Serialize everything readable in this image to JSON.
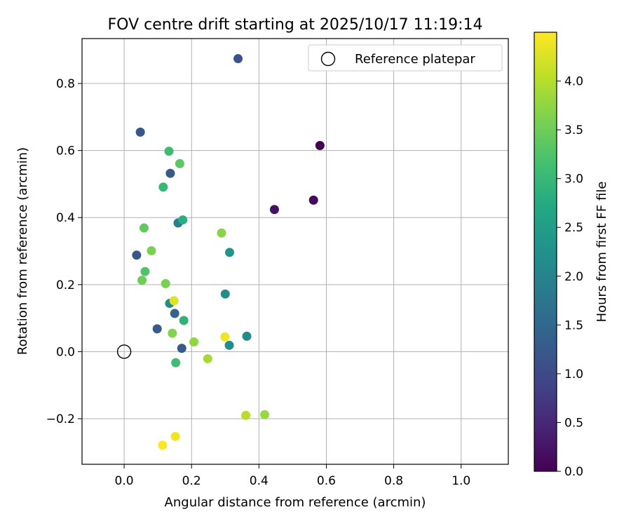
{
  "chart_data": {
    "type": "scatter",
    "title": "FOV centre drift starting at 2025/10/17 11:19:14",
    "xlabel": "Angular distance from reference (arcmin)",
    "ylabel": "Rotation from reference (arcmin)",
    "xlim": [
      -0.125,
      1.14
    ],
    "ylim": [
      -0.336,
      0.934
    ],
    "xticks": [
      0.0,
      0.2,
      0.4,
      0.6,
      0.8,
      1.0
    ],
    "xtick_labels": [
      "0.0",
      "0.2",
      "0.4",
      "0.6",
      "0.8",
      "1.0"
    ],
    "yticks": [
      -0.2,
      0.0,
      0.2,
      0.4,
      0.6,
      0.8
    ],
    "ytick_labels": [
      "−0.2",
      "0.0",
      "0.2",
      "0.4",
      "0.6",
      "0.8"
    ],
    "grid": true,
    "legend": {
      "position": "top-right",
      "entries": [
        "Reference platepar"
      ]
    },
    "reference_point": {
      "x": 0.0,
      "y": 0.0,
      "label": "Reference platepar"
    },
    "colorbar": {
      "label": "Hours from first FF file",
      "colormap": "viridis",
      "range": [
        0.0,
        4.5
      ],
      "ticks": [
        0.0,
        0.5,
        1.0,
        1.5,
        2.0,
        2.5,
        3.0,
        3.5,
        4.0
      ],
      "tick_labels": [
        "0.0",
        "0.5",
        "1.0",
        "1.5",
        "2.0",
        "2.5",
        "3.0",
        "3.5",
        "4.0"
      ]
    },
    "series": [
      {
        "name": "FOV centre drift",
        "points": [
          {
            "x": 0.581,
            "y": 0.615,
            "hours": 0.0
          },
          {
            "x": 0.562,
            "y": 0.452,
            "hours": 0.1
          },
          {
            "x": 0.446,
            "y": 0.424,
            "hours": 0.2
          },
          {
            "x": 0.338,
            "y": 0.874,
            "hours": 1.15
          },
          {
            "x": 0.048,
            "y": 0.655,
            "hours": 1.2
          },
          {
            "x": 0.137,
            "y": 0.532,
            "hours": 1.25
          },
          {
            "x": 0.037,
            "y": 0.288,
            "hours": 1.2
          },
          {
            "x": 0.098,
            "y": 0.068,
            "hours": 1.25
          },
          {
            "x": 0.171,
            "y": 0.01,
            "hours": 1.3
          },
          {
            "x": 0.15,
            "y": 0.114,
            "hours": 1.4
          },
          {
            "x": 0.16,
            "y": 0.384,
            "hours": 1.9
          },
          {
            "x": 0.135,
            "y": 0.144,
            "hours": 2.1
          },
          {
            "x": 0.312,
            "y": 0.019,
            "hours": 2.2
          },
          {
            "x": 0.364,
            "y": 0.046,
            "hours": 2.15
          },
          {
            "x": 0.3,
            "y": 0.172,
            "hours": 2.15
          },
          {
            "x": 0.313,
            "y": 0.296,
            "hours": 2.3
          },
          {
            "x": 0.174,
            "y": 0.393,
            "hours": 2.8
          },
          {
            "x": 0.177,
            "y": 0.093,
            "hours": 2.9
          },
          {
            "x": 0.116,
            "y": 0.491,
            "hours": 3.0
          },
          {
            "x": 0.133,
            "y": 0.598,
            "hours": 3.1
          },
          {
            "x": 0.153,
            "y": -0.033,
            "hours": 3.1
          },
          {
            "x": 0.062,
            "y": 0.239,
            "hours": 3.25
          },
          {
            "x": 0.165,
            "y": 0.561,
            "hours": 3.35
          },
          {
            "x": 0.059,
            "y": 0.369,
            "hours": 3.4
          },
          {
            "x": 0.053,
            "y": 0.213,
            "hours": 3.5
          },
          {
            "x": 0.081,
            "y": 0.301,
            "hours": 3.6
          },
          {
            "x": 0.123,
            "y": 0.203,
            "hours": 3.6
          },
          {
            "x": 0.143,
            "y": 0.055,
            "hours": 3.65
          },
          {
            "x": 0.289,
            "y": 0.354,
            "hours": 3.7
          },
          {
            "x": 0.207,
            "y": 0.029,
            "hours": 3.75
          },
          {
            "x": 0.248,
            "y": -0.021,
            "hours": 3.9
          },
          {
            "x": 0.417,
            "y": -0.188,
            "hours": 3.8
          },
          {
            "x": 0.361,
            "y": -0.19,
            "hours": 4.0
          },
          {
            "x": 0.148,
            "y": 0.152,
            "hours": 4.3
          },
          {
            "x": 0.299,
            "y": 0.044,
            "hours": 4.4
          },
          {
            "x": 0.152,
            "y": -0.253,
            "hours": 4.4
          },
          {
            "x": 0.114,
            "y": -0.279,
            "hours": 4.5
          }
        ]
      }
    ]
  }
}
